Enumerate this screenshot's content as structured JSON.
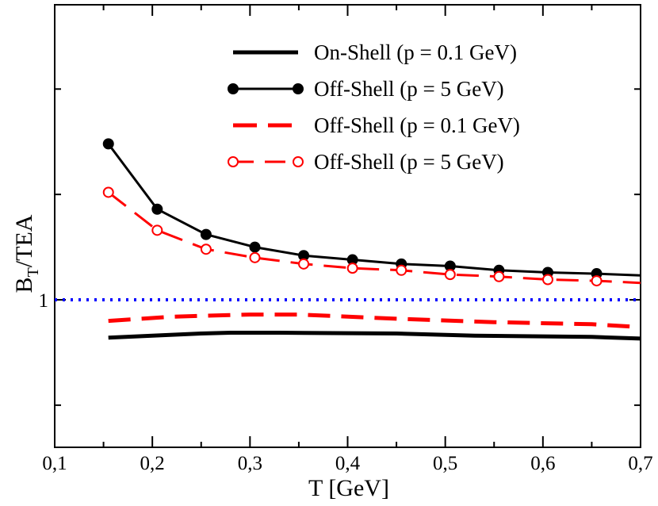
{
  "chart_data": {
    "type": "line",
    "title": "",
    "xlabel": "T [GeV]",
    "ylabel": {
      "main": "B",
      "subscript": "T",
      "suffix": "/TEA"
    },
    "xlim": [
      0.1,
      0.7
    ],
    "ylim": [
      0.65,
      1.7
    ],
    "x_ticks": [
      0.1,
      0.2,
      0.3,
      0.4,
      0.5,
      0.6,
      0.7
    ],
    "x_tick_labels": [
      "0,1",
      "0,2",
      "0,3",
      "0,4",
      "0,5",
      "0,6",
      "0,7"
    ],
    "y_major_ticks": [
      1.0
    ],
    "y_tick_labels": [
      "1"
    ],
    "y_minor_ticks": [
      0.75,
      1.25,
      1.5
    ],
    "grid": false,
    "legend_position": "top-right",
    "reference_line": {
      "y": 1.0,
      "style": "dotted",
      "color": "#0000ff"
    },
    "series": [
      {
        "name": "On-Shell (p = 0.1 GeV)",
        "color": "#000000",
        "dash": "solid",
        "marker": "none",
        "x": [
          0.155,
          0.2,
          0.25,
          0.28,
          0.33,
          0.45,
          0.53,
          0.65,
          0.7
        ],
        "y": [
          0.91,
          0.915,
          0.92,
          0.922,
          0.922,
          0.92,
          0.915,
          0.912,
          0.908
        ]
      },
      {
        "name": "Off-Shell (p = 5 GeV)",
        "color": "#000000",
        "dash": "solid",
        "marker": "filled-circle",
        "x": [
          0.155,
          0.205,
          0.255,
          0.305,
          0.355,
          0.405,
          0.455,
          0.505,
          0.555,
          0.605,
          0.655,
          0.7
        ],
        "y": [
          1.37,
          1.215,
          1.155,
          1.125,
          1.105,
          1.095,
          1.085,
          1.08,
          1.07,
          1.065,
          1.062,
          1.058
        ]
      },
      {
        "name": "Off-Shell (p = 0.1 GeV)",
        "color": "#ff0000",
        "dash": "dashed",
        "marker": "none",
        "x": [
          0.155,
          0.22,
          0.3,
          0.35,
          0.45,
          0.55,
          0.65,
          0.7
        ],
        "y": [
          0.95,
          0.96,
          0.965,
          0.965,
          0.955,
          0.947,
          0.942,
          0.935
        ]
      },
      {
        "name": "Off-Shell (p = 5 GeV)",
        "color": "#ff0000",
        "dash": "dashed",
        "marker": "open-circle",
        "x": [
          0.155,
          0.205,
          0.255,
          0.305,
          0.355,
          0.405,
          0.455,
          0.505,
          0.555,
          0.605,
          0.655,
          0.7
        ],
        "y": [
          1.255,
          1.165,
          1.12,
          1.1,
          1.085,
          1.075,
          1.07,
          1.06,
          1.055,
          1.048,
          1.045,
          1.04
        ]
      }
    ]
  }
}
